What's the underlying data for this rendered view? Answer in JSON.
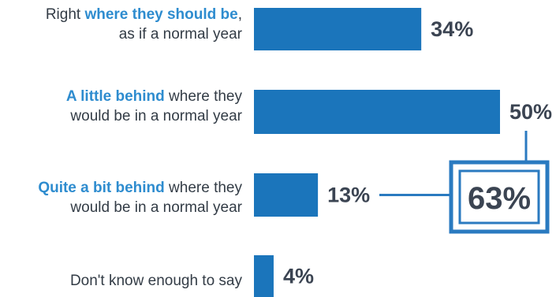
{
  "colors": {
    "bar": "#1b75bb",
    "highlight": "#2a7ac0",
    "text": "#333c46",
    "label_emphasis": "#2e8ccf",
    "value_text": "#3b4452"
  },
  "chart_data": {
    "type": "bar",
    "orientation": "horizontal",
    "categories": [
      "Right where they should be, as if a normal year",
      "A little behind where they would be in a normal year",
      "Quite a bit behind where they would be in a normal year",
      "Don't know enough to say"
    ],
    "values": [
      34,
      50,
      13,
      4
    ],
    "value_labels": [
      "34%",
      "50%",
      "13%",
      "4%"
    ],
    "label_parts": [
      [
        {
          "t": "Right ",
          "e": false
        },
        {
          "t": "where they should be",
          "e": true
        },
        {
          "t": ",",
          "e": false
        },
        {
          "t": "\n",
          "e": false
        },
        {
          "t": "as if a normal year",
          "e": false
        }
      ],
      [
        {
          "t": "A little behind",
          "e": true
        },
        {
          "t": " where they",
          "e": false
        },
        {
          "t": "\n",
          "e": false
        },
        {
          "t": "would be in a normal year",
          "e": false
        }
      ],
      [
        {
          "t": "Quite a bit behind",
          "e": true
        },
        {
          "t": " where they",
          "e": false
        },
        {
          "t": "\n",
          "e": false
        },
        {
          "t": "would be in a normal year",
          "e": false
        }
      ],
      [
        {
          "t": "Don't know enough to say",
          "e": false
        }
      ]
    ],
    "xlim": [
      0,
      50
    ],
    "callout": {
      "label": "63%",
      "combines": [
        1,
        2
      ]
    },
    "title": "",
    "xlabel": "",
    "ylabel": "",
    "grid": false,
    "legend": "none"
  }
}
